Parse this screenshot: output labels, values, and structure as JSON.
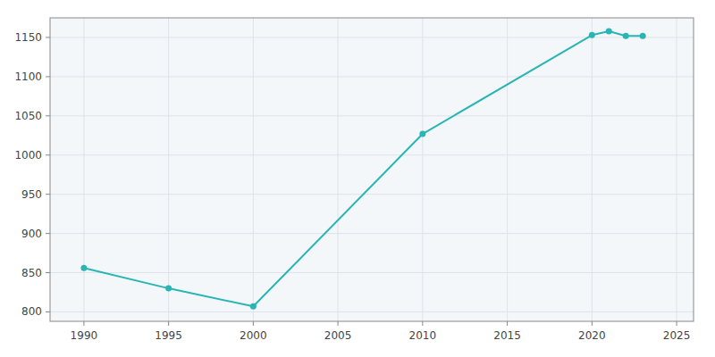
{
  "chart_data": {
    "type": "line",
    "x": [
      1990,
      1995,
      2000,
      2010,
      2020,
      2021,
      2022,
      2023
    ],
    "values": [
      856,
      830,
      807,
      1027,
      1153,
      1158,
      1152,
      1152
    ],
    "color": "#2ab5b5",
    "marker": "circle",
    "xlim": [
      1988,
      2026
    ],
    "ylim": [
      788,
      1175
    ],
    "xticks": [
      1990,
      1995,
      2000,
      2005,
      2010,
      2015,
      2020,
      2025
    ],
    "yticks": [
      800,
      850,
      900,
      950,
      1000,
      1050,
      1100,
      1150
    ],
    "grid": true
  }
}
